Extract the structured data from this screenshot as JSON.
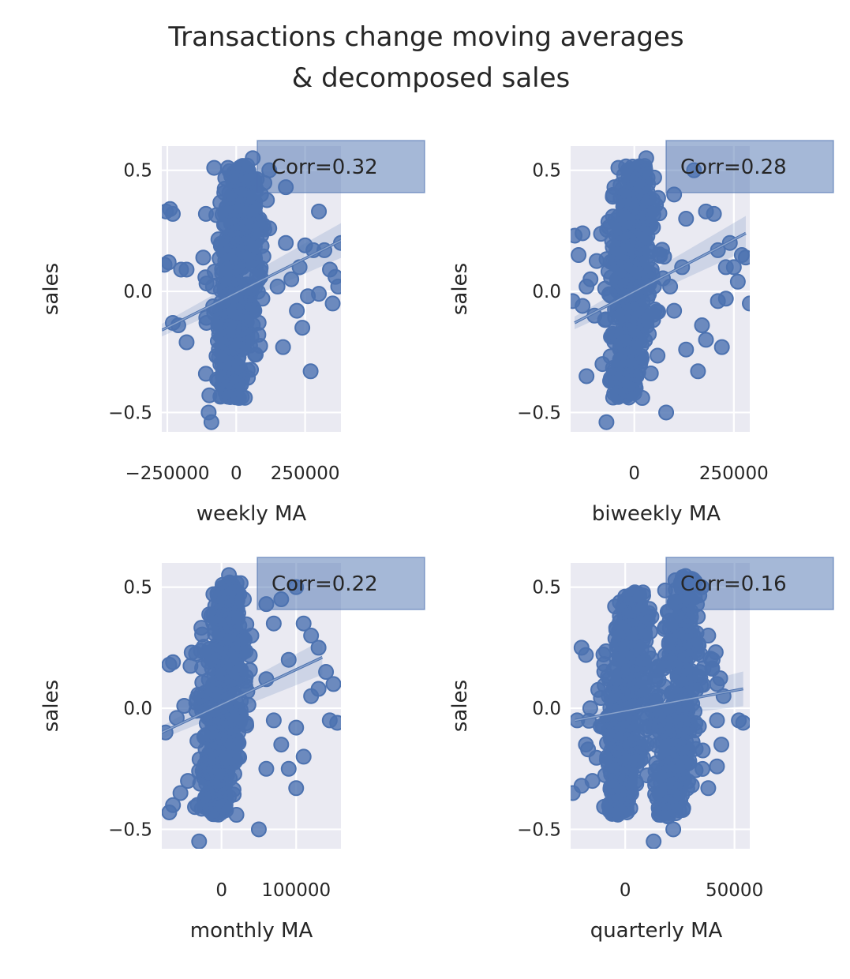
{
  "figure": {
    "title_line1": "Transactions change moving averages",
    "title_line2": "& decomposed sales"
  },
  "colors": {
    "background": "#EAEAF2",
    "grid": "#FFFFFF",
    "points": "#4C72B0",
    "annotation_box": "#4C72B0"
  },
  "chart_data": [
    {
      "type": "scatter",
      "xlabel": "weekly MA",
      "ylabel": "sales",
      "annotation": "Corr=0.32",
      "xlim": [
        -270000,
        380000
      ],
      "ylim": [
        -0.58,
        0.6
      ],
      "xticks": [
        -250000,
        0,
        250000
      ],
      "xtick_labels": [
        "−250000",
        "0",
        "250000"
      ],
      "yticks": [
        -0.5,
        0.0,
        0.5
      ],
      "ytick_labels": [
        "−0.5",
        "0.0",
        "0.5"
      ],
      "regression": {
        "x": [
          -270000,
          380000
        ],
        "y": [
          -0.16,
          0.21
        ]
      },
      "cloud": {
        "x_center": 0,
        "x_spread": 45000,
        "y_min": -0.44,
        "y_max": 0.52,
        "slope": 5e-07
      },
      "outliers": [
        {
          "x": -255000,
          "y": 0.33
        },
        {
          "x": -240000,
          "y": 0.34
        },
        {
          "x": -230000,
          "y": 0.32
        },
        {
          "x": -260000,
          "y": 0.11
        },
        {
          "x": -245000,
          "y": 0.12
        },
        {
          "x": -200000,
          "y": 0.09
        },
        {
          "x": -180000,
          "y": 0.09
        },
        {
          "x": -230000,
          "y": -0.13
        },
        {
          "x": -210000,
          "y": -0.14
        },
        {
          "x": -180000,
          "y": -0.21
        },
        {
          "x": -110000,
          "y": 0.32
        },
        {
          "x": -80000,
          "y": 0.51
        },
        {
          "x": -30000,
          "y": 0.51
        },
        {
          "x": 60000,
          "y": 0.55
        },
        {
          "x": 120000,
          "y": 0.5
        },
        {
          "x": 180000,
          "y": 0.43
        },
        {
          "x": 250000,
          "y": 0.19
        },
        {
          "x": 280000,
          "y": 0.17
        },
        {
          "x": 300000,
          "y": 0.33
        },
        {
          "x": 320000,
          "y": 0.17
        },
        {
          "x": 340000,
          "y": 0.09
        },
        {
          "x": 360000,
          "y": 0.06
        },
        {
          "x": 370000,
          "y": 0.02
        },
        {
          "x": 350000,
          "y": -0.05
        },
        {
          "x": 380000,
          "y": 0.2
        },
        {
          "x": 300000,
          "y": -0.01
        },
        {
          "x": 260000,
          "y": -0.02
        },
        {
          "x": 220000,
          "y": -0.08
        },
        {
          "x": 240000,
          "y": -0.15
        },
        {
          "x": 170000,
          "y": -0.23
        },
        {
          "x": 150000,
          "y": 0.02
        },
        {
          "x": 120000,
          "y": 0.26
        },
        {
          "x": 180000,
          "y": 0.2
        },
        {
          "x": 270000,
          "y": -0.33
        },
        {
          "x": -100000,
          "y": -0.5
        },
        {
          "x": -90000,
          "y": -0.54
        },
        {
          "x": -110000,
          "y": -0.34
        },
        {
          "x": -20000,
          "y": -0.43
        },
        {
          "x": 10000,
          "y": -0.44
        },
        {
          "x": 90000,
          "y": 0.4
        },
        {
          "x": 230000,
          "y": 0.1
        },
        {
          "x": 200000,
          "y": 0.05
        }
      ]
    },
    {
      "type": "scatter",
      "xlabel": "biweekly MA",
      "ylabel": "sales",
      "annotation": "Corr=0.28",
      "xlim": [
        -160000,
        290000
      ],
      "ylim": [
        -0.58,
        0.6
      ],
      "xticks": [
        0,
        250000
      ],
      "xtick_labels": [
        "0",
        "250000"
      ],
      "yticks": [
        -0.5,
        0.0,
        0.5
      ],
      "ytick_labels": [
        "−0.5",
        "0.0",
        "0.5"
      ],
      "regression": {
        "x": [
          -150000,
          280000
        ],
        "y": [
          -0.13,
          0.24
        ]
      },
      "cloud": {
        "x_center": -10000,
        "x_spread": 32000,
        "y_min": -0.44,
        "y_max": 0.52,
        "slope": 6e-07
      },
      "outliers": [
        {
          "x": -150000,
          "y": 0.23
        },
        {
          "x": -130000,
          "y": 0.24
        },
        {
          "x": -140000,
          "y": 0.15
        },
        {
          "x": -110000,
          "y": 0.05
        },
        {
          "x": -120000,
          "y": 0.02
        },
        {
          "x": -155000,
          "y": -0.04
        },
        {
          "x": -130000,
          "y": -0.06
        },
        {
          "x": -100000,
          "y": -0.1
        },
        {
          "x": -120000,
          "y": -0.35
        },
        {
          "x": -70000,
          "y": -0.54
        },
        {
          "x": -80000,
          "y": -0.3
        },
        {
          "x": -50000,
          "y": 0.43
        },
        {
          "x": -40000,
          "y": 0.51
        },
        {
          "x": 30000,
          "y": 0.55
        },
        {
          "x": 50000,
          "y": 0.47
        },
        {
          "x": 100000,
          "y": 0.4
        },
        {
          "x": 150000,
          "y": 0.5
        },
        {
          "x": 180000,
          "y": 0.33
        },
        {
          "x": 200000,
          "y": 0.32
        },
        {
          "x": 210000,
          "y": 0.17
        },
        {
          "x": 230000,
          "y": 0.1
        },
        {
          "x": 240000,
          "y": 0.2
        },
        {
          "x": 250000,
          "y": 0.1
        },
        {
          "x": 270000,
          "y": 0.15
        },
        {
          "x": 260000,
          "y": 0.04
        },
        {
          "x": 280000,
          "y": 0.14
        },
        {
          "x": 290000,
          "y": -0.05
        },
        {
          "x": 230000,
          "y": -0.03
        },
        {
          "x": 210000,
          "y": -0.04
        },
        {
          "x": 170000,
          "y": -0.14
        },
        {
          "x": 180000,
          "y": -0.2
        },
        {
          "x": 130000,
          "y": -0.24
        },
        {
          "x": 220000,
          "y": -0.23
        },
        {
          "x": 160000,
          "y": -0.33
        },
        {
          "x": 80000,
          "y": -0.5
        },
        {
          "x": 20000,
          "y": -0.44
        },
        {
          "x": 130000,
          "y": 0.3
        },
        {
          "x": 120000,
          "y": 0.1
        },
        {
          "x": 90000,
          "y": 0.02
        },
        {
          "x": 100000,
          "y": -0.08
        },
        {
          "x": -20000,
          "y": -0.43
        },
        {
          "x": 0,
          "y": -0.42
        }
      ]
    },
    {
      "type": "scatter",
      "xlabel": "monthly MA",
      "ylabel": "sales",
      "annotation": "Corr=0.22",
      "xlim": [
        -80000,
        160000
      ],
      "ylim": [
        -0.58,
        0.6
      ],
      "xticks": [
        0,
        100000
      ],
      "xtick_labels": [
        "0",
        "100000"
      ],
      "yticks": [
        -0.5,
        0.0,
        0.5
      ],
      "ytick_labels": [
        "−0.5",
        "0.0",
        "0.5"
      ],
      "regression": {
        "x": [
          -80000,
          135000
        ],
        "y": [
          -0.1,
          0.21
        ]
      },
      "cloud": {
        "x_center": 0,
        "x_spread": 16000,
        "y_min": -0.44,
        "y_max": 0.52,
        "slope": 1.5e-06
      },
      "outliers": [
        {
          "x": -70000,
          "y": 0.18
        },
        {
          "x": -65000,
          "y": 0.19
        },
        {
          "x": -75000,
          "y": -0.1
        },
        {
          "x": -60000,
          "y": -0.04
        },
        {
          "x": -50000,
          "y": 0.01
        },
        {
          "x": -65000,
          "y": -0.4
        },
        {
          "x": -70000,
          "y": -0.43
        },
        {
          "x": -55000,
          "y": -0.35
        },
        {
          "x": -45000,
          "y": -0.3
        },
        {
          "x": -30000,
          "y": -0.55
        },
        {
          "x": -40000,
          "y": 0.23
        },
        {
          "x": 10000,
          "y": 0.55
        },
        {
          "x": 30000,
          "y": 0.45
        },
        {
          "x": 60000,
          "y": 0.43
        },
        {
          "x": 80000,
          "y": 0.45
        },
        {
          "x": 100000,
          "y": 0.5
        },
        {
          "x": 110000,
          "y": 0.35
        },
        {
          "x": 120000,
          "y": 0.3
        },
        {
          "x": 130000,
          "y": 0.25
        },
        {
          "x": 140000,
          "y": 0.15
        },
        {
          "x": 150000,
          "y": 0.1
        },
        {
          "x": 145000,
          "y": -0.05
        },
        {
          "x": 155000,
          "y": -0.06
        },
        {
          "x": 120000,
          "y": 0.05
        },
        {
          "x": 100000,
          "y": -0.08
        },
        {
          "x": 80000,
          "y": -0.15
        },
        {
          "x": 110000,
          "y": -0.2
        },
        {
          "x": 90000,
          "y": -0.25
        },
        {
          "x": 100000,
          "y": -0.33
        },
        {
          "x": 50000,
          "y": -0.5
        },
        {
          "x": 60000,
          "y": -0.25
        },
        {
          "x": 70000,
          "y": -0.05
        },
        {
          "x": 90000,
          "y": 0.2
        },
        {
          "x": 70000,
          "y": 0.35
        },
        {
          "x": 40000,
          "y": 0.3
        },
        {
          "x": 20000,
          "y": -0.44
        },
        {
          "x": -10000,
          "y": -0.43
        },
        {
          "x": 130000,
          "y": 0.08
        },
        {
          "x": 60000,
          "y": 0.12
        }
      ]
    },
    {
      "type": "scatter",
      "xlabel": "quarterly MA",
      "ylabel": "sales",
      "annotation": "Corr=0.16",
      "xlim": [
        -25000,
        57000
      ],
      "ylim": [
        -0.58,
        0.6
      ],
      "xticks": [
        0,
        50000
      ],
      "xtick_labels": [
        "0",
        "50000"
      ],
      "yticks": [
        -0.5,
        0.0,
        0.5
      ],
      "ytick_labels": [
        "−0.5",
        "0.0",
        "0.5"
      ],
      "regression": {
        "x": [
          -23000,
          54000
        ],
        "y": [
          -0.05,
          0.08
        ]
      },
      "cloud": {
        "x_center": 0,
        "x_spread": 5500,
        "y_min": -0.44,
        "y_max": 0.48,
        "slope": 2e-06
      },
      "cloud2": {
        "x_center": 24000,
        "x_spread": 6000,
        "y_min": -0.45,
        "y_max": 0.55,
        "slope": 2e-06
      },
      "outliers": [
        {
          "x": -20000,
          "y": 0.25
        },
        {
          "x": -18000,
          "y": 0.22
        },
        {
          "x": -22000,
          "y": -0.05
        },
        {
          "x": -24000,
          "y": -0.35
        },
        {
          "x": -20000,
          "y": -0.32
        },
        {
          "x": -15000,
          "y": -0.3
        },
        {
          "x": -17000,
          "y": -0.17
        },
        {
          "x": -16000,
          "y": 0.0
        },
        {
          "x": -18000,
          "y": -0.15
        },
        {
          "x": 5000,
          "y": 0.47
        },
        {
          "x": 13000,
          "y": -0.55
        },
        {
          "x": 22000,
          "y": -0.5
        },
        {
          "x": 40000,
          "y": 0.2
        },
        {
          "x": 42000,
          "y": 0.1
        },
        {
          "x": 45000,
          "y": 0.05
        },
        {
          "x": 42000,
          "y": -0.05
        },
        {
          "x": 44000,
          "y": -0.15
        },
        {
          "x": 42000,
          "y": -0.24
        },
        {
          "x": 52000,
          "y": -0.05
        },
        {
          "x": 54000,
          "y": -0.06
        },
        {
          "x": 38000,
          "y": 0.3
        },
        {
          "x": 30000,
          "y": 0.45
        },
        {
          "x": 35000,
          "y": 0.5
        },
        {
          "x": 20000,
          "y": 0.4
        },
        {
          "x": 38000,
          "y": -0.33
        }
      ]
    }
  ]
}
